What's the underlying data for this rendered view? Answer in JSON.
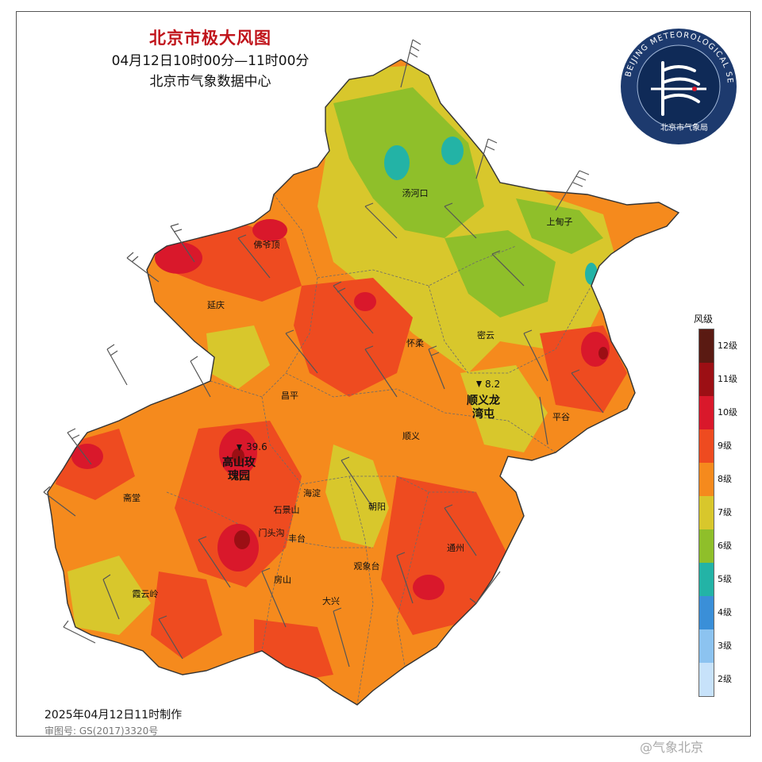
{
  "header": {
    "title": "北京市极大风图",
    "time_range": "04月12日10时00分—11时00分",
    "publisher": "北京市气象数据中心"
  },
  "logo": {
    "ring_text": "BEIJING METEOROLOGICAL SERVICE",
    "name": "北京市气象局",
    "ring_color": "#1d3a6e"
  },
  "legend": {
    "title": "风级",
    "levels": [
      {
        "label": "12级",
        "color": "#5a1a12"
      },
      {
        "label": "11级",
        "color": "#9c0f14"
      },
      {
        "label": "10级",
        "color": "#d9182b"
      },
      {
        "label": "9级",
        "color": "#ee4b20"
      },
      {
        "label": "8级",
        "color": "#f58a1d"
      },
      {
        "label": "7级",
        "color": "#d8c72c"
      },
      {
        "label": "6级",
        "color": "#8fbf2a"
      },
      {
        "label": "5级",
        "color": "#23b3a6"
      },
      {
        "label": "4级",
        "color": "#3a8fd8"
      },
      {
        "label": "3级",
        "color": "#8cc3f0"
      },
      {
        "label": "2级",
        "color": "#c7e2fa"
      }
    ]
  },
  "places": [
    {
      "name": "汤河口"
    },
    {
      "name": "上甸子"
    },
    {
      "name": "佛爷顶"
    },
    {
      "name": "延庆"
    },
    {
      "name": "怀柔"
    },
    {
      "name": "密云"
    },
    {
      "name": "昌平"
    },
    {
      "name": "平谷"
    },
    {
      "name": "顺义"
    },
    {
      "name": "海淀"
    },
    {
      "name": "石景山"
    },
    {
      "name": "朝阳"
    },
    {
      "name": "斋堂"
    },
    {
      "name": "门头沟"
    },
    {
      "name": "丰台"
    },
    {
      "name": "通州"
    },
    {
      "name": "房山"
    },
    {
      "name": "观象台"
    },
    {
      "name": "霞云岭"
    },
    {
      "name": "大兴"
    }
  ],
  "highlights": [
    {
      "name": "高山玫瑰园",
      "line1": "高山玫",
      "line2": "瑰园",
      "value": "39.6"
    },
    {
      "name": "顺义龙湾屯",
      "line1": "顺义龙",
      "line2": "湾屯",
      "value": "8.2"
    }
  ],
  "footer": {
    "made": "2025年04月12日11时制作",
    "review": "审图号: GS(2017)3320号"
  },
  "watermark": "@气象北京"
}
